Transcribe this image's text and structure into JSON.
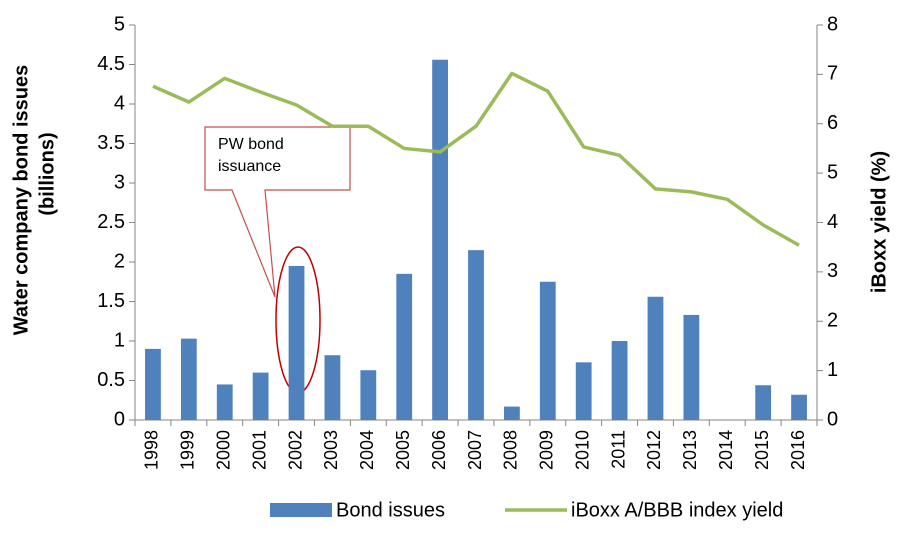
{
  "chart_data": {
    "type": "bar_line",
    "categories": [
      "1998",
      "1999",
      "2000",
      "2001",
      "2002",
      "2003",
      "2004",
      "2005",
      "2006",
      "2007",
      "2008",
      "2009",
      "2010",
      "2011",
      "2012",
      "2013",
      "2014",
      "2015",
      "2016"
    ],
    "series": [
      {
        "name": "Bond issues",
        "type": "bar",
        "color": "#4f81bd",
        "axis": "y",
        "values": [
          0.9,
          1.03,
          0.45,
          0.6,
          1.95,
          0.82,
          0.63,
          1.85,
          4.56,
          2.15,
          0.17,
          1.75,
          0.73,
          1.0,
          1.56,
          1.33,
          0,
          0.44,
          0.32
        ]
      },
      {
        "name": "iBoxx A/BBB index yield",
        "type": "line",
        "color": "#9bbb59",
        "axis": "y2",
        "values": [
          6.76,
          6.44,
          6.92,
          6.64,
          6.38,
          5.95,
          5.95,
          5.5,
          5.43,
          5.95,
          7.02,
          6.66,
          5.53,
          5.36,
          4.68,
          4.62,
          4.47,
          3.95,
          3.54
        ]
      }
    ],
    "ylabel": [
      "Water company  bond issues",
      "(billions)"
    ],
    "y2label": "iBoxx yield (%)",
    "ylim": [
      0,
      5
    ],
    "yticks": [
      0,
      0.5,
      1,
      1.5,
      2,
      2.5,
      3,
      3.5,
      4,
      4.5,
      5
    ],
    "y2lim": [
      0,
      8
    ],
    "y2ticks": [
      0,
      1,
      2,
      3,
      4,
      5,
      6,
      7,
      8
    ],
    "annotation": "PW bond issuance",
    "legend": "bottom",
    "grid": false
  }
}
